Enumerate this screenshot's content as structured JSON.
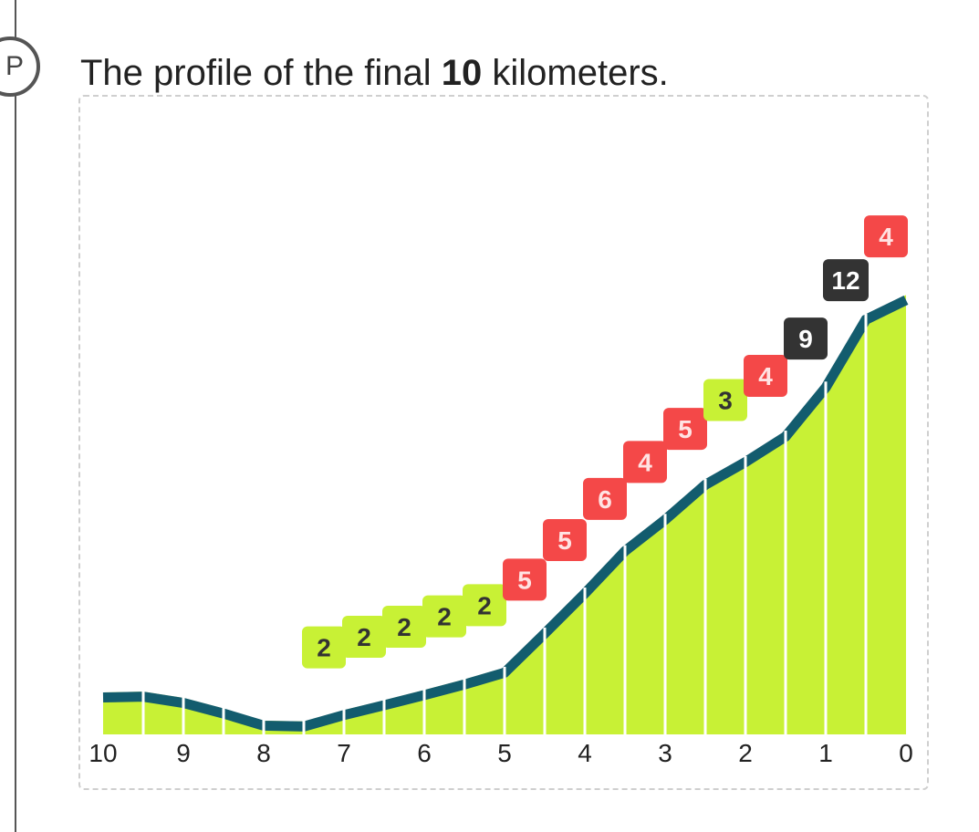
{
  "step": {
    "marker": "P"
  },
  "header": {
    "title_prefix": "The profile of the final ",
    "title_bold": "10",
    "title_suffix": " kilometers."
  },
  "chart_data": {
    "type": "area",
    "title": "The profile of the final 10 kilometers.",
    "xlabel": "",
    "ylabel": "",
    "x_direction": "descending",
    "x_ticks": [
      "10",
      "9",
      "8",
      "7",
      "6",
      "5",
      "4",
      "3",
      "2",
      "1",
      "0"
    ],
    "segment_gradients": [
      {
        "x": 7,
        "label": "2",
        "level": "easy"
      },
      {
        "x": 6.5,
        "label": "2",
        "level": "easy"
      },
      {
        "x": 6,
        "label": "2",
        "level": "easy"
      },
      {
        "x": 5.5,
        "label": "2",
        "level": "easy"
      },
      {
        "x": 5,
        "label": "2",
        "level": "easy"
      },
      {
        "x": 4.5,
        "label": "5",
        "level": "hard"
      },
      {
        "x": 4,
        "label": "5",
        "level": "hard"
      },
      {
        "x": 3.5,
        "label": "6",
        "level": "hard"
      },
      {
        "x": 3,
        "label": "4",
        "level": "hard"
      },
      {
        "x": 2.5,
        "label": "5",
        "level": "hard"
      },
      {
        "x": 2,
        "label": "3",
        "level": "easy"
      },
      {
        "x": 1.5,
        "label": "4",
        "level": "hard"
      },
      {
        "x": 1,
        "label": "9",
        "level": "extreme"
      },
      {
        "x": 0.5,
        "label": "12",
        "level": "extreme"
      },
      {
        "x": 0,
        "label": "4",
        "level": "hard"
      }
    ],
    "profile": {
      "x": [
        10,
        9.5,
        9,
        8.5,
        8,
        7.5,
        7,
        6.5,
        6,
        5.5,
        5,
        4.5,
        4,
        3.5,
        3,
        2.5,
        2,
        1.5,
        1,
        0.5,
        0
      ],
      "relative_height": [
        0.107,
        0.109,
        0.093,
        0.066,
        0.035,
        0.033,
        0.062,
        0.087,
        0.113,
        0.14,
        0.17,
        0.27,
        0.372,
        0.48,
        0.56,
        0.649,
        0.707,
        0.772,
        0.897,
        1.07,
        1.12
      ]
    },
    "grid": false,
    "legend": "none",
    "colors": {
      "fill": "#c8f135",
      "outline": "#135c6e",
      "easy": "#c8f135",
      "hard": "#f44848",
      "extreme": "#333333",
      "easy_text": "#333333",
      "hard_text": "#ffe3e3",
      "extreme_text": "#ffffff"
    }
  }
}
